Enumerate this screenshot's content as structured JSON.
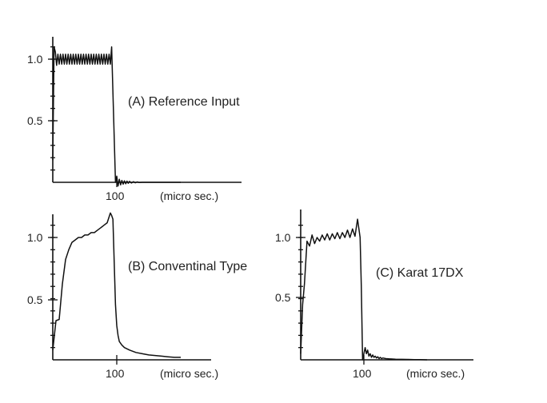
{
  "chart_data": [
    {
      "type": "line",
      "annotation": "(A) Reference Input",
      "x_unit": "(micro sec.)",
      "x_tick_labels": [
        "100"
      ],
      "y_tick_labels": [
        "1.0",
        "0.5"
      ],
      "xlim": [
        0,
        200
      ],
      "ylim": [
        0,
        1.2
      ],
      "series": [
        {
          "x": [
            0,
            2,
            4,
            6,
            8,
            10,
            12,
            14,
            16,
            18,
            20,
            22,
            24,
            26,
            28,
            30,
            32,
            34,
            36,
            38,
            40,
            42,
            44,
            46,
            48,
            50,
            52,
            54,
            56,
            58,
            60,
            62,
            64,
            66,
            68,
            70,
            72,
            74,
            76,
            78,
            80,
            82,
            84,
            86,
            88,
            90,
            92,
            95,
            98,
            100,
            102,
            104,
            106,
            108,
            110,
            112,
            114,
            116,
            118,
            120,
            123,
            126,
            129,
            132,
            135,
            140,
            150,
            160,
            170,
            180,
            190,
            200
          ],
          "y": [
            0.18,
            1.1,
            1.06,
            0.95,
            1.04,
            0.96,
            1.04,
            0.96,
            1.04,
            0.96,
            1.04,
            0.96,
            1.04,
            0.96,
            1.04,
            0.96,
            1.04,
            0.96,
            1.04,
            0.96,
            1.04,
            0.96,
            1.04,
            0.96,
            1.04,
            0.96,
            1.04,
            0.96,
            1.04,
            0.96,
            1.04,
            0.96,
            1.04,
            0.96,
            1.04,
            0.96,
            1.04,
            0.96,
            1.04,
            0.96,
            1.04,
            0.96,
            1.04,
            0.96,
            1.04,
            0.96,
            1.1,
            0.55,
            0.0,
            0.05,
            -0.03,
            0.025,
            -0.02,
            0.015,
            -0.015,
            0.012,
            -0.012,
            0.01,
            -0.008,
            0.008,
            -0.006,
            0.005,
            -0.004,
            0.003,
            -0.002,
            0.0,
            0.0,
            0.0,
            0.0,
            0.0,
            0.0,
            0.0
          ]
        }
      ]
    },
    {
      "type": "line",
      "annotation": "(B) Conventinal Type",
      "x_unit": "(micro sec.)",
      "x_tick_labels": [
        "100"
      ],
      "y_tick_labels": [
        "1.0",
        "0.5"
      ],
      "xlim": [
        0,
        200
      ],
      "ylim": [
        0,
        1.2
      ],
      "series": [
        {
          "x": [
            0,
            5,
            10,
            15,
            20,
            25,
            30,
            35,
            40,
            45,
            50,
            55,
            60,
            65,
            70,
            75,
            80,
            85,
            90,
            92,
            94,
            96,
            98,
            100,
            102,
            104,
            108,
            112,
            120,
            130,
            140,
            150,
            160,
            170,
            180,
            190,
            200
          ],
          "y": [
            0.08,
            0.32,
            0.33,
            0.62,
            0.82,
            0.9,
            0.96,
            0.98,
            1.0,
            1.0,
            1.02,
            1.02,
            1.04,
            1.04,
            1.06,
            1.08,
            1.1,
            1.12,
            1.2,
            1.18,
            1.15,
            0.8,
            0.45,
            0.28,
            0.2,
            0.15,
            0.12,
            0.1,
            0.08,
            0.06,
            0.05,
            0.04,
            0.035,
            0.03,
            0.025,
            0.02,
            0.02
          ]
        }
      ]
    },
    {
      "type": "line",
      "annotation": "(C) Karat 17DX",
      "x_unit": "(micro sec.)",
      "x_tick_labels": [
        "100"
      ],
      "y_tick_labels": [
        "1.0",
        "0.5"
      ],
      "xlim": [
        0,
        200
      ],
      "ylim": [
        0,
        1.2
      ],
      "series": [
        {
          "x": [
            0,
            3,
            6,
            10,
            14,
            18,
            22,
            26,
            30,
            34,
            38,
            42,
            46,
            50,
            54,
            58,
            62,
            66,
            70,
            74,
            78,
            82,
            86,
            90,
            94,
            96,
            98,
            100,
            102,
            104,
            106,
            108,
            110,
            112,
            114,
            116,
            118,
            120,
            122,
            124,
            126,
            128,
            130,
            135,
            140,
            150,
            160,
            170,
            180,
            190,
            200
          ],
          "y": [
            0.05,
            0.45,
            0.62,
            0.97,
            0.93,
            1.02,
            0.95,
            1.0,
            0.97,
            1.02,
            0.98,
            1.03,
            0.98,
            1.03,
            0.99,
            1.04,
            0.99,
            1.04,
            1.0,
            1.06,
            1.0,
            1.07,
            1.01,
            1.15,
            1.0,
            0.6,
            0.0,
            0.05,
            0.1,
            0.05,
            0.08,
            0.03,
            0.05,
            0.02,
            0.04,
            0.02,
            0.03,
            0.015,
            0.025,
            0.01,
            0.02,
            0.01,
            0.015,
            0.01,
            0.008,
            0.005,
            0.004,
            0.003,
            0.002,
            0.001,
            0.0
          ]
        }
      ]
    }
  ]
}
